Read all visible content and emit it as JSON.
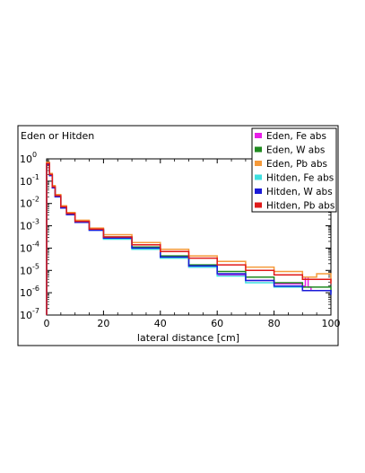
{
  "chart_data": {
    "type": "line",
    "title": "",
    "corner_label": "Eden or Hitden",
    "xlabel": "lateral distance [cm]",
    "ylabel": "",
    "xlim": [
      0,
      100
    ],
    "ylim_log10": [
      -7,
      0
    ],
    "yscale": "log",
    "x_ticks": [
      0,
      20,
      40,
      60,
      80,
      100
    ],
    "x_tick_labels": [
      "0",
      "20",
      "40",
      "60",
      "80",
      "100"
    ],
    "y_ticks_log10": [
      0,
      -1,
      -2,
      -3,
      -4,
      -5,
      -6,
      -7
    ],
    "y_tick_base": "10",
    "y_tick_exponents": [
      "0",
      "-1",
      "-2",
      "-3",
      "-4",
      "-5",
      "-6",
      "-7"
    ],
    "grid": false,
    "legend_position": "top-right",
    "series": [
      {
        "name": "Eden, Fe abs",
        "color": "#e81ee8",
        "x": [
          0,
          1,
          2,
          3,
          5,
          7,
          10,
          15,
          20,
          30,
          40,
          50,
          60,
          70,
          80,
          90,
          91,
          92,
          93,
          100
        ],
        "y_log10": [
          -0.2,
          -0.7,
          -1.3,
          -1.7,
          -2.2,
          -2.5,
          -2.85,
          -3.2,
          -3.55,
          -4.0,
          -4.4,
          -4.85,
          -5.2,
          -5.45,
          -5.6,
          -5.7,
          -5.3,
          -5.75,
          -5.9,
          -6.0
        ]
      },
      {
        "name": "Eden, W abs",
        "color": "#1f8a1f",
        "x": [
          0,
          1,
          2,
          3,
          5,
          7,
          10,
          15,
          20,
          30,
          40,
          50,
          60,
          70,
          80,
          90,
          100
        ],
        "y_log10": [
          -0.2,
          -0.7,
          -1.25,
          -1.65,
          -2.15,
          -2.45,
          -2.8,
          -3.15,
          -3.5,
          -3.95,
          -4.35,
          -4.75,
          -5.05,
          -5.3,
          -5.55,
          -5.75,
          -5.95
        ]
      },
      {
        "name": "Eden, Pb abs",
        "color": "#f59a3a",
        "x": [
          0,
          1,
          2,
          3,
          5,
          7,
          10,
          15,
          20,
          30,
          40,
          50,
          60,
          70,
          80,
          90,
          95,
          100
        ],
        "y_log10": [
          -0.15,
          -0.65,
          -1.2,
          -1.6,
          -2.1,
          -2.4,
          -2.75,
          -3.1,
          -3.4,
          -3.75,
          -4.05,
          -4.35,
          -4.6,
          -4.85,
          -5.05,
          -5.3,
          -5.15,
          -5.5
        ]
      },
      {
        "name": "Hitden, Fe abs",
        "color": "#3ee0e0",
        "x": [
          0,
          1,
          2,
          3,
          5,
          7,
          10,
          15,
          20,
          30,
          40,
          50,
          60,
          70,
          80,
          90,
          100
        ],
        "y_log10": [
          -0.25,
          -0.75,
          -1.3,
          -1.7,
          -2.2,
          -2.5,
          -2.85,
          -3.2,
          -3.6,
          -4.05,
          -4.45,
          -4.85,
          -5.25,
          -5.55,
          -5.75,
          -5.9,
          -6.05
        ]
      },
      {
        "name": "Hitden, W abs",
        "color": "#1a1ad8",
        "x": [
          0,
          1,
          2,
          3,
          5,
          7,
          10,
          15,
          20,
          30,
          40,
          50,
          60,
          70,
          80,
          90,
          100
        ],
        "y_log10": [
          -0.25,
          -0.75,
          -1.3,
          -1.7,
          -2.2,
          -2.5,
          -2.85,
          -3.2,
          -3.55,
          -4.0,
          -4.4,
          -4.8,
          -5.15,
          -5.45,
          -5.7,
          -5.9,
          -6.1
        ]
      },
      {
        "name": "Hitden, Pb abs",
        "color": "#e01a1a",
        "x": [
          0,
          1,
          2,
          3,
          5,
          7,
          10,
          15,
          20,
          30,
          40,
          50,
          60,
          70,
          80,
          90,
          100
        ],
        "y_log10": [
          -0.2,
          -0.7,
          -1.25,
          -1.65,
          -2.15,
          -2.45,
          -2.8,
          -3.15,
          -3.5,
          -3.85,
          -4.15,
          -4.45,
          -4.75,
          -5.0,
          -5.2,
          -5.4,
          -5.6
        ]
      }
    ]
  }
}
